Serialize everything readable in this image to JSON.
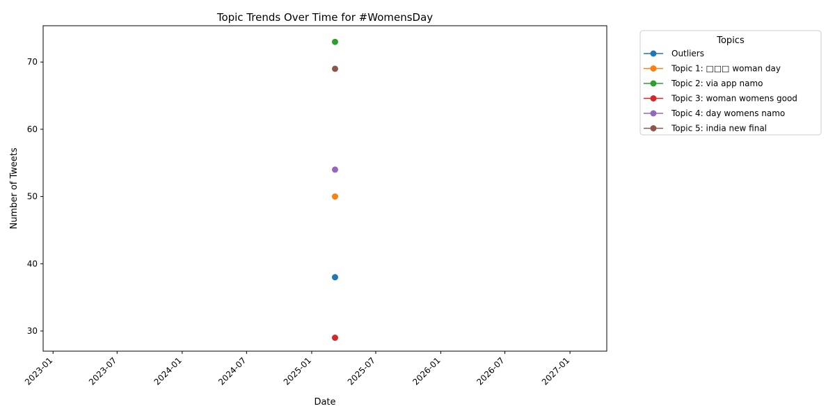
{
  "chart_data": {
    "type": "line",
    "title": "Topic Trends Over Time for #WomensDay",
    "xlabel": "Date",
    "ylabel": "Number of Tweets",
    "x_axis": {
      "type": "date",
      "range": [
        "2022-12-04",
        "2027-04-15"
      ],
      "ticks": [
        {
          "value": "2023-01-01",
          "label": "2023-01"
        },
        {
          "value": "2023-07-01",
          "label": "2023-07"
        },
        {
          "value": "2024-01-01",
          "label": "2024-01"
        },
        {
          "value": "2024-07-01",
          "label": "2024-07"
        },
        {
          "value": "2025-01-01",
          "label": "2025-01"
        },
        {
          "value": "2025-07-01",
          "label": "2025-07"
        },
        {
          "value": "2026-01-01",
          "label": "2026-01"
        },
        {
          "value": "2026-07-01",
          "label": "2026-07"
        },
        {
          "value": "2027-01-01",
          "label": "2027-01"
        }
      ]
    },
    "y_axis": {
      "range": [
        27,
        75.4
      ],
      "ticks": [
        30,
        40,
        50,
        60,
        70
      ]
    },
    "grid": false,
    "legend": {
      "title": "Topics",
      "placement": "outside-top-right"
    },
    "series": [
      {
        "name": "Outliers",
        "color": "#1f77b4",
        "points": [
          {
            "x": "2025-03-08",
            "y": 38
          }
        ]
      },
      {
        "name": "Topic 1: □□□ woman day",
        "color": "#ff7f0e",
        "points": [
          {
            "x": "2025-03-08",
            "y": 50
          }
        ]
      },
      {
        "name": "Topic 2: via app namo",
        "color": "#2ca02c",
        "points": [
          {
            "x": "2025-03-08",
            "y": 73
          }
        ]
      },
      {
        "name": "Topic 3: woman womens good",
        "color": "#d62728",
        "points": [
          {
            "x": "2025-03-08",
            "y": 29
          }
        ]
      },
      {
        "name": "Topic 4: day womens namo",
        "color": "#9467bd",
        "points": [
          {
            "x": "2025-03-08",
            "y": 54
          }
        ]
      },
      {
        "name": "Topic 5: india new final",
        "color": "#8c564b",
        "points": [
          {
            "x": "2025-03-08",
            "y": 69
          }
        ]
      }
    ]
  }
}
